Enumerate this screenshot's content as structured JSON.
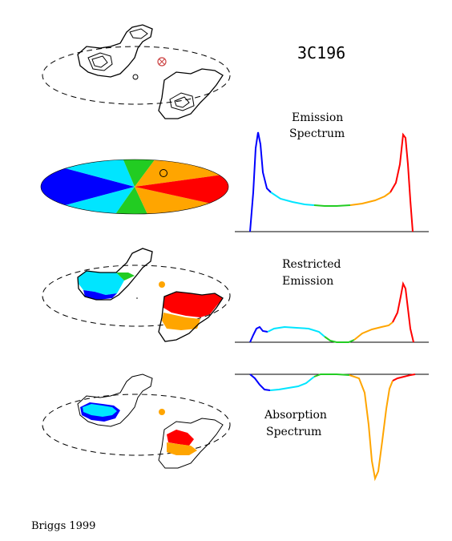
{
  "title": "3C196",
  "credit": "Briggs 1999",
  "labels": {
    "emission_line1": "Emission",
    "emission_line2": "Spectrum",
    "restricted_line1": "Restricted",
    "restricted_line2": "Emission",
    "absorption_line1": "Absorption",
    "absorption_line2": "Spectrum"
  },
  "colors": {
    "blue": "#0000ff",
    "cyan": "#00e5ff",
    "green": "#22cc22",
    "orange": "#ffa500",
    "red": "#ff0000",
    "black": "#000000"
  }
}
